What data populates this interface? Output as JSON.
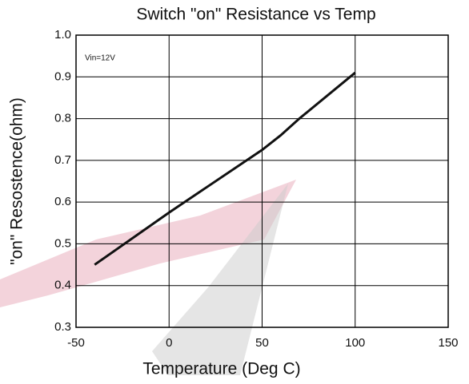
{
  "chart_data": {
    "type": "line",
    "title": "Switch \"on\" Resistance vs Temp",
    "x_label": "Temperature (Deg C)",
    "y_label": "\"on\" Resostence(ohm)",
    "annotation": "Vin=12V",
    "x": [
      -40,
      0,
      50,
      60,
      70,
      100
    ],
    "series": [
      {
        "name": "Vin=12V",
        "color": "#111111",
        "values": [
          0.45,
          0.575,
          0.725,
          0.76,
          0.8,
          0.91
        ]
      }
    ],
    "xlim": [
      -50,
      150
    ],
    "xticks": [
      -50,
      0,
      50,
      100,
      150
    ],
    "ylim": [
      0.3,
      1
    ],
    "yticks": [
      0.3,
      0.4,
      0.5,
      0.6,
      0.7,
      0.8,
      0.9,
      {
        "value": 1,
        "label": "1.0"
      }
    ],
    "grid": true
  }
}
